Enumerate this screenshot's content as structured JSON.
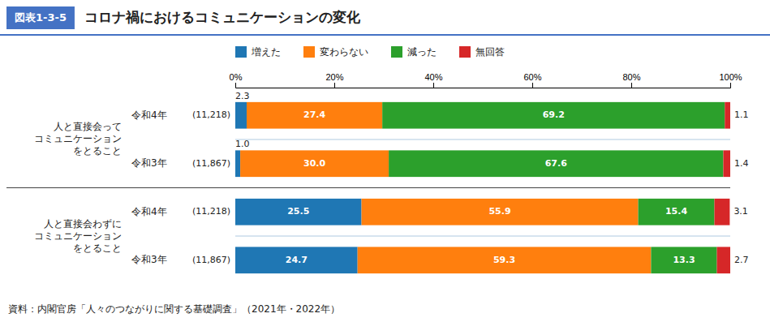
{
  "chart_data": {
    "type": "bar",
    "orientation": "horizontal",
    "stacked": true,
    "title": "コロナ禍におけるコミュニケーションの変化",
    "title_box": "図表1-3-5",
    "source": "資料：内閣官房「人々のつながりに関する基礎調査」（2021年・2022年）",
    "groups": [
      {
        "label": "人と直接会って\nコミュニケーション\nをとること",
        "categories": [
          "令和4年",
          "令和3年"
        ],
        "n": [
          "(11,218)",
          "(11,867)"
        ]
      },
      {
        "label": "人と直接会わずに\nコミュニケーション\nをとること",
        "categories": [
          "令和4年",
          "令和3年"
        ],
        "n": [
          "(11,218)",
          "(11,867)"
        ]
      }
    ],
    "series": [
      {
        "name": "増えた",
        "values": [
          2.3,
          1.0,
          25.5,
          24.7
        ],
        "value_labels": [
          "2.3",
          "1.0",
          "25.5",
          "24.7"
        ]
      },
      {
        "name": "変わらない",
        "values": [
          27.4,
          30.0,
          55.9,
          59.3
        ],
        "value_labels": [
          "27.4",
          "30.0",
          "55.9",
          "59.3"
        ]
      },
      {
        "name": "減った",
        "values": [
          69.2,
          67.6,
          15.4,
          13.3
        ],
        "value_labels": [
          "69.2",
          "67.6",
          "15.4",
          "13.3"
        ]
      },
      {
        "name": "無回答",
        "values": [
          1.1,
          1.4,
          3.1,
          2.7
        ],
        "value_labels": [
          "1.1",
          "1.4",
          "3.1",
          "2.7"
        ]
      }
    ],
    "xlim": [
      0,
      100
    ],
    "xticks": [
      {
        "value": 0,
        "label": "0%"
      },
      {
        "value": 20,
        "label": "20%"
      },
      {
        "value": 40,
        "label": "40%"
      },
      {
        "value": 60,
        "label": "60%"
      },
      {
        "value": 80,
        "label": "80%"
      },
      {
        "value": 100,
        "label": "100%"
      }
    ],
    "grid": false,
    "legend": "top",
    "data_labels": true
  }
}
